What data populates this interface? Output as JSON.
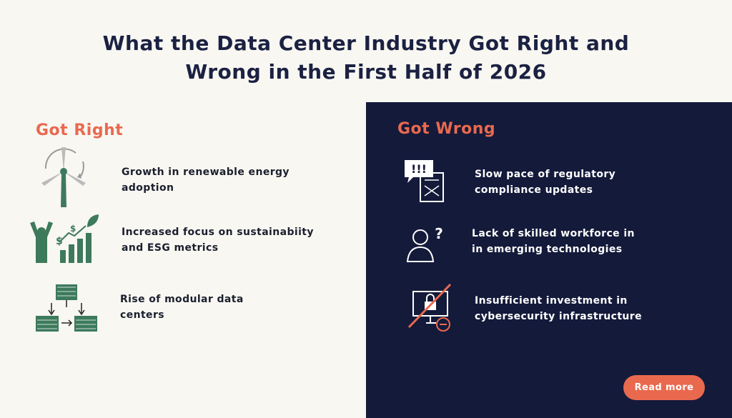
{
  "header": {
    "title_lines": [
      "What the Data Center Industry Got Right and",
      "Wrong in the First Half of 2026"
    ]
  },
  "got_right": {
    "heading": "Got Right",
    "items": [
      {
        "text_lines": [
          "Growth in renewable energy",
          "adoption"
        ]
      },
      {
        "text_lines": [
          "Increased focus on sustainabiity",
          "and ESG metrics"
        ]
      },
      {
        "text_lines": [
          "Rise of modular data",
          "centers"
        ]
      }
    ]
  },
  "got_wrong": {
    "heading": "Got Wrong",
    "items": [
      {
        "text_lines": [
          "Slow pace of regulatory",
          "compliance updates"
        ]
      },
      {
        "text_lines": [
          "Lack of skilled workforce in",
          "in emerging technologies"
        ]
      },
      {
        "text_lines": [
          "Insufficient investment in",
          "cybersecurity infrastructure"
        ]
      }
    ]
  },
  "button": {
    "label": "Read more"
  }
}
